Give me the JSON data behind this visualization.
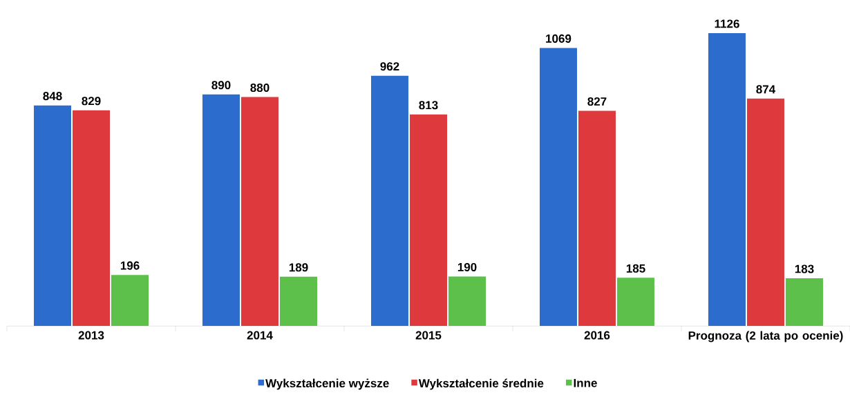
{
  "chart_data": {
    "type": "bar",
    "categories": [
      "2013",
      "2014",
      "2015",
      "2016",
      "Prognoza (2 lata po ocenie)"
    ],
    "series": [
      {
        "name": "Wykształcenie wyższe",
        "color": "#2c6ccc",
        "values": [
          848,
          890,
          962,
          1069,
          1126
        ]
      },
      {
        "name": "Wykształcenie średnie",
        "color": "#de3a3e",
        "values": [
          829,
          880,
          813,
          827,
          874
        ]
      },
      {
        "name": "Inne",
        "color": "#5cc04a",
        "values": [
          196,
          189,
          190,
          185,
          183
        ]
      }
    ],
    "data_labels": true,
    "legend": "bottom"
  }
}
